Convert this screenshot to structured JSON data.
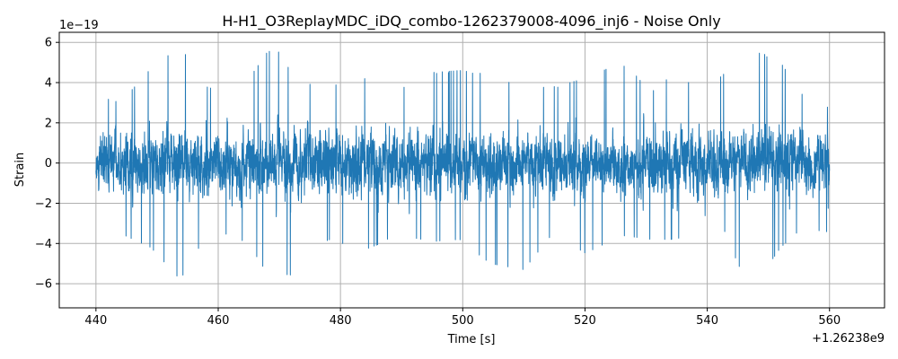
{
  "chart_data": {
    "type": "line",
    "title": "H-H1_O3ReplayMDC_iDQ_combo-1262379008-4096_inj6 - Noise Only",
    "xlabel": "Time [s]",
    "ylabel": "Strain",
    "x_offset_label": "+1.26238e9",
    "y_scale_label": "1e−19",
    "xlim": [
      434,
      569
    ],
    "ylim": [
      -7.2,
      6.5
    ],
    "x_ticks": [
      440,
      460,
      480,
      500,
      520,
      540,
      560
    ],
    "x_tick_labels": [
      "440",
      "460",
      "480",
      "500",
      "520",
      "540",
      "560"
    ],
    "y_ticks": [
      -6,
      -4,
      -2,
      0,
      2,
      4,
      6
    ],
    "y_tick_labels": [
      "−6",
      "−4",
      "−2",
      "0",
      "2",
      "4",
      "6"
    ],
    "grid": true,
    "series": [
      {
        "color": "#1f77b4",
        "x_range": [
          440,
          560
        ],
        "typical_amplitude": 2.5,
        "envelope": [
          {
            "x": 440.0,
            "min": -1.2,
            "max": 0.8
          },
          {
            "x": 440.5,
            "min": -3.3,
            "max": 3.3
          },
          {
            "x": 444.0,
            "min": -3.5,
            "max": 3.0
          },
          {
            "x": 449.0,
            "min": -4.2,
            "max": 4.7
          },
          {
            "x": 453.8,
            "min": -5.8,
            "max": 5.8
          },
          {
            "x": 458.0,
            "min": -3.6,
            "max": 3.8
          },
          {
            "x": 463.0,
            "min": -3.5,
            "max": 3.3
          },
          {
            "x": 468.0,
            "min": -5.4,
            "max": 5.5
          },
          {
            "x": 469.5,
            "min": -5.5,
            "max": 5.7
          },
          {
            "x": 473.0,
            "min": -5.6,
            "max": 4.0
          },
          {
            "x": 478.0,
            "min": -3.8,
            "max": 3.8
          },
          {
            "x": 484.0,
            "min": -4.3,
            "max": 4.2
          },
          {
            "x": 490.0,
            "min": -3.6,
            "max": 3.7
          },
          {
            "x": 495.0,
            "min": -3.9,
            "max": 4.5
          },
          {
            "x": 499.5,
            "min": -3.8,
            "max": 4.6
          },
          {
            "x": 504.5,
            "min": -5.0,
            "max": 4.4
          },
          {
            "x": 510.0,
            "min": -5.3,
            "max": 3.7
          },
          {
            "x": 515.0,
            "min": -3.4,
            "max": 3.8
          },
          {
            "x": 520.0,
            "min": -4.5,
            "max": 4.2
          },
          {
            "x": 526.0,
            "min": -3.6,
            "max": 5.0
          },
          {
            "x": 531.0,
            "min": -3.8,
            "max": 3.6
          },
          {
            "x": 534.0,
            "min": -3.8,
            "max": 4.3
          },
          {
            "x": 540.0,
            "min": -3.5,
            "max": 3.7
          },
          {
            "x": 543.0,
            "min": -3.4,
            "max": 4.5
          },
          {
            "x": 546.8,
            "min": -6.5,
            "max": 5.8
          },
          {
            "x": 552.0,
            "min": -4.2,
            "max": 5.0
          },
          {
            "x": 556.0,
            "min": -3.1,
            "max": 3.2
          },
          {
            "x": 559.5,
            "min": -3.5,
            "max": 3.5
          },
          {
            "x": 560.0,
            "min": -1.3,
            "max": 1.3
          }
        ]
      }
    ]
  }
}
